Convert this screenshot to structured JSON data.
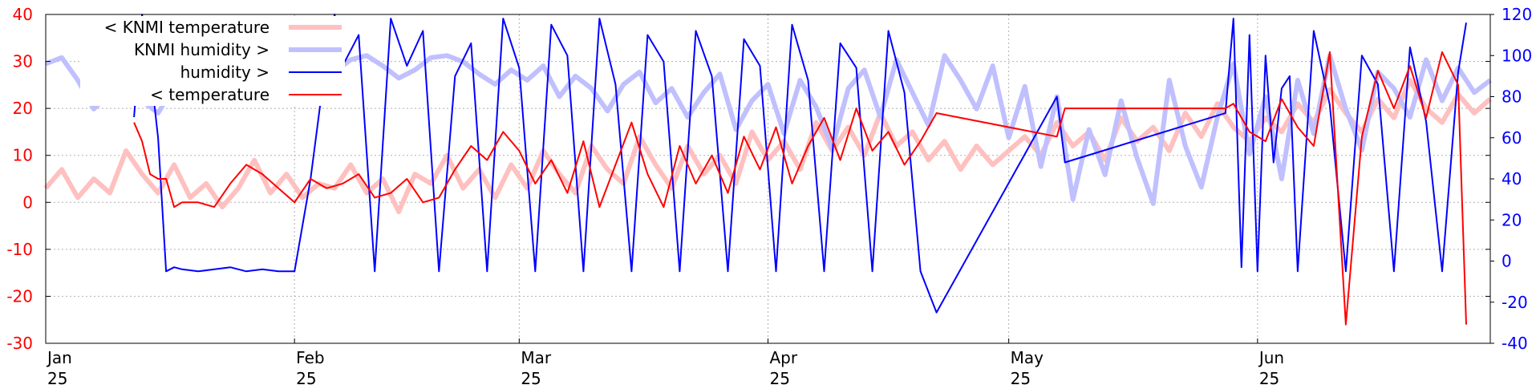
{
  "colors": {
    "temperature": "#ff0000",
    "humidity": "#0000ff",
    "knmi_temperature": "#ffc0c0",
    "knmi_humidity": "#c0c0ff",
    "left_axis": "#ff0000",
    "right_axis": "#0000ff",
    "grid": "#b0b0b0"
  },
  "chart_data": {
    "type": "line",
    "title": "",
    "grid": true,
    "legend_placement": "top-left",
    "x_axis": {
      "type": "time",
      "range": [
        "2025-01-01",
        "2025-06-30"
      ],
      "ticks": [
        {
          "date": "2025-01-01",
          "label1": "Jan",
          "label2": "25"
        },
        {
          "date": "2025-02-01",
          "label1": "Feb",
          "label2": "25"
        },
        {
          "date": "2025-03-01",
          "label1": "Mar",
          "label2": "25"
        },
        {
          "date": "2025-04-01",
          "label1": "Apr",
          "label2": "25"
        },
        {
          "date": "2025-05-01",
          "label1": "May",
          "label2": "25"
        },
        {
          "date": "2025-06-01",
          "label1": "Jun",
          "label2": "25"
        }
      ]
    },
    "y_left": {
      "ylim": [
        -30,
        40
      ],
      "ticks": [
        -30,
        -20,
        -10,
        0,
        10,
        20,
        30,
        40
      ]
    },
    "y_right": {
      "ylim": [
        -40,
        120
      ],
      "ticks": [
        -40,
        -20,
        0,
        20,
        40,
        60,
        80,
        100,
        120
      ]
    },
    "legend": [
      {
        "label": "< KNMI temperature",
        "key": "knmi_temperature"
      },
      {
        "label": "KNMI humidity >",
        "key": "knmi_humidity"
      },
      {
        "label": "humidity >",
        "key": "humidity"
      },
      {
        "label": "< temperature",
        "key": "temperature"
      }
    ],
    "series": [
      {
        "name": "< KNMI temperature",
        "axis": "left",
        "width": 6,
        "x": [
          "2025-01-01",
          "2025-01-03",
          "2025-01-05",
          "2025-01-07",
          "2025-01-09",
          "2025-01-11",
          "2025-01-13",
          "2025-01-15",
          "2025-01-17",
          "2025-01-19",
          "2025-01-21",
          "2025-01-23",
          "2025-01-25",
          "2025-01-27",
          "2025-01-29",
          "2025-01-31",
          "2025-02-02",
          "2025-02-04",
          "2025-02-06",
          "2025-02-08",
          "2025-02-10",
          "2025-02-12",
          "2025-02-14",
          "2025-02-16",
          "2025-02-18",
          "2025-02-20",
          "2025-02-22",
          "2025-02-24",
          "2025-02-26",
          "2025-02-28",
          "2025-03-02",
          "2025-03-04",
          "2025-03-06",
          "2025-03-08",
          "2025-03-10",
          "2025-03-12",
          "2025-03-14",
          "2025-03-16",
          "2025-03-18",
          "2025-03-20",
          "2025-03-22",
          "2025-03-24",
          "2025-03-26",
          "2025-03-28",
          "2025-03-30",
          "2025-04-01",
          "2025-04-03",
          "2025-04-05",
          "2025-04-07",
          "2025-04-09",
          "2025-04-11",
          "2025-04-13",
          "2025-04-15",
          "2025-04-17",
          "2025-04-19",
          "2025-04-21",
          "2025-04-23",
          "2025-04-25",
          "2025-04-27",
          "2025-04-29",
          "2025-05-01",
          "2025-05-03",
          "2025-05-05",
          "2025-05-07",
          "2025-05-09",
          "2025-05-11",
          "2025-05-13",
          "2025-05-15",
          "2025-05-17",
          "2025-05-19",
          "2025-05-21",
          "2025-05-23",
          "2025-05-25",
          "2025-05-27",
          "2025-05-29",
          "2025-05-31",
          "2025-06-02",
          "2025-06-04",
          "2025-06-06",
          "2025-06-08",
          "2025-06-10",
          "2025-06-12",
          "2025-06-14",
          "2025-06-16",
          "2025-06-18",
          "2025-06-20",
          "2025-06-22",
          "2025-06-24",
          "2025-06-26",
          "2025-06-28",
          "2025-06-30"
        ],
        "y": [
          3,
          7,
          1,
          5,
          2,
          11,
          6,
          2,
          8,
          1,
          4,
          -1,
          3,
          9,
          2,
          6,
          1,
          4,
          3,
          8,
          2,
          5,
          -2,
          6,
          4,
          10,
          3,
          7,
          1,
          8,
          3,
          11,
          6,
          2,
          12,
          7,
          4,
          14,
          8,
          3,
          12,
          6,
          10,
          4,
          15,
          9,
          13,
          7,
          17,
          11,
          16,
          10,
          19,
          12,
          15,
          9,
          13,
          7,
          12,
          8,
          11,
          14,
          10,
          17,
          12,
          15,
          9,
          18,
          13,
          16,
          11,
          19,
          14,
          21,
          16,
          13,
          18,
          15,
          21,
          17,
          24,
          19,
          15,
          22,
          18,
          26,
          20,
          17,
          23,
          19,
          22
        ]
      },
      {
        "name": "KNMI humidity >",
        "axis": "right",
        "width": 6,
        "x": [
          "2025-01-01",
          "2025-01-03",
          "2025-01-05",
          "2025-01-07",
          "2025-01-09",
          "2025-01-11",
          "2025-01-13",
          "2025-01-15",
          "2025-01-17",
          "2025-01-19",
          "2025-01-21",
          "2025-01-23",
          "2025-01-25",
          "2025-01-27",
          "2025-01-29",
          "2025-01-31",
          "2025-02-02",
          "2025-02-04",
          "2025-02-06",
          "2025-02-08",
          "2025-02-10",
          "2025-02-12",
          "2025-02-14",
          "2025-02-16",
          "2025-02-18",
          "2025-02-20",
          "2025-02-22",
          "2025-02-24",
          "2025-02-26",
          "2025-02-28",
          "2025-03-02",
          "2025-03-04",
          "2025-03-06",
          "2025-03-08",
          "2025-03-10",
          "2025-03-12",
          "2025-03-14",
          "2025-03-16",
          "2025-03-18",
          "2025-03-20",
          "2025-03-22",
          "2025-03-24",
          "2025-03-26",
          "2025-03-28",
          "2025-03-30",
          "2025-04-01",
          "2025-04-03",
          "2025-04-05",
          "2025-04-07",
          "2025-04-09",
          "2025-04-11",
          "2025-04-13",
          "2025-04-15",
          "2025-04-17",
          "2025-04-19",
          "2025-04-21",
          "2025-04-23",
          "2025-04-25",
          "2025-04-27",
          "2025-04-29",
          "2025-05-01",
          "2025-05-03",
          "2025-05-05",
          "2025-05-07",
          "2025-05-09",
          "2025-05-11",
          "2025-05-13",
          "2025-05-15",
          "2025-05-17",
          "2025-05-19",
          "2025-05-21",
          "2025-05-23",
          "2025-05-25",
          "2025-05-27",
          "2025-05-29",
          "2025-05-31",
          "2025-06-02",
          "2025-06-04",
          "2025-06-06",
          "2025-06-08",
          "2025-06-10",
          "2025-06-12",
          "2025-06-14",
          "2025-06-16",
          "2025-06-18",
          "2025-06-20",
          "2025-06-22",
          "2025-06-24",
          "2025-06-26",
          "2025-06-28",
          "2025-06-30"
        ],
        "y": [
          96,
          99,
          88,
          74,
          82,
          90,
          78,
          72,
          85,
          94,
          99,
          92,
          97,
          100,
          95,
          98,
          101,
          96,
          92,
          98,
          100,
          95,
          89,
          93,
          99,
          100,
          97,
          91,
          86,
          93,
          88,
          95,
          80,
          90,
          84,
          73,
          86,
          92,
          77,
          84,
          70,
          82,
          91,
          64,
          78,
          86,
          62,
          88,
          75,
          55,
          84,
          93,
          70,
          98,
          82,
          66,
          100,
          88,
          74,
          95,
          60,
          85,
          46,
          80,
          30,
          64,
          42,
          78,
          50,
          28,
          88,
          56,
          36,
          70,
          96,
          52,
          80,
          40,
          88,
          62,
          100,
          74,
          54,
          92,
          84,
          70,
          98,
          78,
          94,
          82,
          88
        ]
      },
      {
        "name": "humidity >",
        "axis": "right",
        "width": 2,
        "x": [
          "2025-01-12",
          "2025-01-13",
          "2025-01-14",
          "2025-01-15",
          "2025-01-16",
          "2025-01-17",
          "2025-01-18",
          "2025-01-20",
          "2025-01-22",
          "2025-01-24",
          "2025-01-26",
          "2025-01-28",
          "2025-01-30",
          "2025-02-01",
          "2025-02-03",
          "2025-02-05",
          "2025-02-06",
          "2025-02-07",
          "2025-02-09",
          "2025-02-11",
          "2025-02-13",
          "2025-02-15",
          "2025-02-17",
          "2025-02-19",
          "2025-02-21",
          "2025-02-23",
          "2025-02-25",
          "2025-02-27",
          "2025-03-01",
          "2025-03-03",
          "2025-03-05",
          "2025-03-07",
          "2025-03-09",
          "2025-03-11",
          "2025-03-13",
          "2025-03-15",
          "2025-03-17",
          "2025-03-19",
          "2025-03-21",
          "2025-03-23",
          "2025-03-25",
          "2025-03-27",
          "2025-03-29",
          "2025-03-31",
          "2025-04-02",
          "2025-04-04",
          "2025-04-06",
          "2025-04-08",
          "2025-04-10",
          "2025-04-12",
          "2025-04-14",
          "2025-04-16",
          "2025-04-18",
          "2025-04-20",
          "2025-04-22",
          "2025-05-07",
          "2025-05-08",
          "2025-05-28",
          "2025-05-29",
          "2025-05-30",
          "2025-05-31",
          "2025-06-01",
          "2025-06-02",
          "2025-06-03",
          "2025-06-04",
          "2025-06-05",
          "2025-06-06",
          "2025-06-08",
          "2025-06-10",
          "2025-06-12",
          "2025-06-14",
          "2025-06-16",
          "2025-06-18",
          "2025-06-20",
          "2025-06-22",
          "2025-06-24",
          "2025-06-26",
          "2025-06-27"
        ],
        "y": [
          70,
          120,
          95,
          60,
          -5,
          -3,
          -4,
          -5,
          -4,
          -3,
          -5,
          -4,
          -5,
          -5,
          40,
          100,
          120,
          95,
          110,
          -5,
          118,
          95,
          112,
          -5,
          90,
          106,
          -5,
          118,
          94,
          -5,
          115,
          100,
          -5,
          118,
          86,
          -5,
          110,
          97,
          -5,
          112,
          90,
          -5,
          108,
          95,
          -5,
          115,
          88,
          -5,
          106,
          94,
          -5,
          112,
          82,
          -5,
          -25,
          80,
          48,
          72,
          118,
          -3,
          110,
          -5,
          100,
          48,
          84,
          90,
          -5,
          112,
          76,
          -5,
          100,
          86,
          -5,
          104,
          68,
          -5,
          92,
          116
        ]
      },
      {
        "name": "< temperature",
        "axis": "left",
        "width": 2,
        "x": [
          "2025-01-12",
          "2025-01-13",
          "2025-01-14",
          "2025-01-15",
          "2025-01-16",
          "2025-01-17",
          "2025-01-18",
          "2025-01-20",
          "2025-01-22",
          "2025-01-24",
          "2025-01-26",
          "2025-01-28",
          "2025-01-30",
          "2025-02-01",
          "2025-02-03",
          "2025-02-05",
          "2025-02-07",
          "2025-02-09",
          "2025-02-11",
          "2025-02-13",
          "2025-02-15",
          "2025-02-17",
          "2025-02-19",
          "2025-02-21",
          "2025-02-23",
          "2025-02-25",
          "2025-02-27",
          "2025-03-01",
          "2025-03-03",
          "2025-03-05",
          "2025-03-07",
          "2025-03-09",
          "2025-03-11",
          "2025-03-13",
          "2025-03-15",
          "2025-03-17",
          "2025-03-19",
          "2025-03-21",
          "2025-03-23",
          "2025-03-25",
          "2025-03-27",
          "2025-03-29",
          "2025-03-31",
          "2025-04-02",
          "2025-04-04",
          "2025-04-06",
          "2025-04-08",
          "2025-04-10",
          "2025-04-12",
          "2025-04-14",
          "2025-04-16",
          "2025-04-18",
          "2025-04-20",
          "2025-04-22",
          "2025-05-07",
          "2025-05-08",
          "2025-05-28",
          "2025-05-29",
          "2025-05-31",
          "2025-06-02",
          "2025-06-04",
          "2025-06-06",
          "2025-06-08",
          "2025-06-10",
          "2025-06-12",
          "2025-06-14",
          "2025-06-16",
          "2025-06-18",
          "2025-06-20",
          "2025-06-22",
          "2025-06-24",
          "2025-06-26",
          "2025-06-27"
        ],
        "y": [
          17,
          13,
          6,
          5,
          5,
          -1,
          0,
          0,
          -1,
          4,
          8,
          6,
          3,
          0,
          5,
          3,
          4,
          6,
          1,
          2,
          5,
          0,
          1,
          7,
          12,
          9,
          15,
          11,
          4,
          9,
          2,
          13,
          -1,
          8,
          17,
          6,
          -1,
          12,
          4,
          10,
          2,
          14,
          7,
          16,
          4,
          12,
          18,
          9,
          20,
          11,
          15,
          8,
          13,
          19,
          14,
          20,
          20,
          21,
          15,
          13,
          22,
          16,
          12,
          32,
          -26,
          14,
          28,
          20,
          29,
          18,
          32,
          25,
          -26
        ]
      }
    ]
  }
}
